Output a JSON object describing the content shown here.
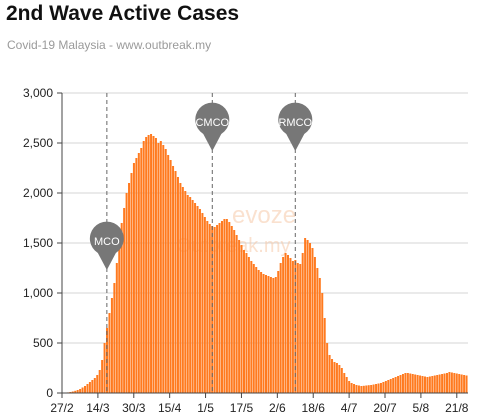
{
  "header": {
    "title": "2nd Wave Active Cases",
    "subtitle": "Covid-19 Malaysia - www.outbreak.my"
  },
  "watermark": {
    "brand": "evoze",
    "subtext": "Outbreak.my"
  },
  "colors": {
    "bar": "#ff7a1f",
    "grid": "#d4d4d4",
    "marker": "#777777"
  },
  "chart_data": {
    "type": "bar",
    "x_range": [
      "27/2",
      "26/8"
    ],
    "ylim": [
      0,
      3000
    ],
    "yticks": [
      0,
      500,
      1000,
      1500,
      2000,
      2500,
      3000
    ],
    "ytick_labels": [
      "0",
      "500",
      "1,000",
      "1,500",
      "2,000",
      "2,500",
      "3,000"
    ],
    "xtick_labels": [
      "27/2",
      "14/3",
      "30/3",
      "15/4",
      "1/5",
      "17/5",
      "2/6",
      "18/6",
      "4/7",
      "20/7",
      "5/8",
      "21/8"
    ],
    "grid": true,
    "events": [
      {
        "label": "MCO",
        "date": "18/3"
      },
      {
        "label": "CMCO",
        "date": "4/5"
      },
      {
        "label": "RMCO",
        "date": "10/6"
      }
    ],
    "series": [
      {
        "values": [
          2,
          4,
          6,
          10,
          15,
          22,
          30,
          40,
          55,
          70,
          90,
          110,
          130,
          150,
          180,
          230,
          330,
          500,
          650,
          800,
          950,
          1100,
          1300,
          1500,
          1700,
          1850,
          2000,
          2100,
          2200,
          2300,
          2350,
          2400,
          2450,
          2520,
          2560,
          2580,
          2590,
          2570,
          2550,
          2500,
          2520,
          2480,
          2440,
          2380,
          2330,
          2270,
          2220,
          2160,
          2100,
          2060,
          2020,
          1980,
          1960,
          1930,
          1900,
          1870,
          1840,
          1800,
          1760,
          1720,
          1690,
          1670,
          1660,
          1680,
          1700,
          1720,
          1740,
          1740,
          1710,
          1670,
          1630,
          1580,
          1530,
          1480,
          1430,
          1400,
          1360,
          1320,
          1290,
          1260,
          1230,
          1210,
          1190,
          1180,
          1170,
          1160,
          1150,
          1160,
          1220,
          1300,
          1360,
          1400,
          1380,
          1350,
          1320,
          1330,
          1300,
          1290,
          1400,
          1550,
          1530,
          1500,
          1450,
          1360,
          1250,
          1150,
          1000,
          750,
          500,
          380,
          340,
          310,
          300,
          280,
          250,
          200,
          160,
          120,
          100,
          90,
          80,
          75,
          70,
          72,
          75,
          78,
          80,
          85,
          90,
          95,
          100,
          110,
          120,
          130,
          140,
          150,
          160,
          170,
          180,
          190,
          200,
          200,
          195,
          190,
          185,
          180,
          175,
          170,
          165,
          160,
          165,
          170,
          175,
          180,
          185,
          190,
          195,
          200,
          210,
          205,
          200,
          195,
          190,
          185,
          180,
          175
        ]
      }
    ]
  }
}
